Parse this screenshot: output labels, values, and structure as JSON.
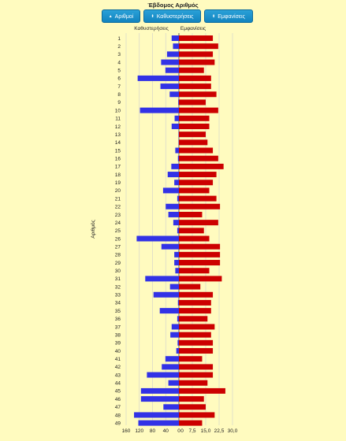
{
  "title": "Έβδομος Αριθμός",
  "buttons": [
    {
      "label": "Αριθμοί",
      "icon": "sort-up-icon"
    },
    {
      "label": "Καθυστερήσεις",
      "icon": "sort-both-icon"
    },
    {
      "label": "Εμφανίσεις",
      "icon": "sort-both-icon"
    }
  ],
  "colors": {
    "delays": "#3232e6",
    "appearances": "#cc0000",
    "background": "#fffbbf",
    "button": "#1a8fcc"
  },
  "chart_data": {
    "type": "bar",
    "orientation": "horizontal",
    "ylabel": "Αριθμός",
    "categories": [
      "1",
      "2",
      "3",
      "4",
      "5",
      "6",
      "7",
      "8",
      "9",
      "10",
      "11",
      "12",
      "13",
      "14",
      "15",
      "16",
      "17",
      "18",
      "19",
      "20",
      "21",
      "22",
      "23",
      "24",
      "25",
      "26",
      "27",
      "28",
      "29",
      "30",
      "31",
      "32",
      "33",
      "34",
      "35",
      "36",
      "37",
      "38",
      "39",
      "40",
      "41",
      "42",
      "43",
      "44",
      "45",
      "46",
      "47",
      "48",
      "49"
    ],
    "series": [
      {
        "name": "Καθυστερήσεις",
        "side": "left",
        "xticks": [
          160,
          120,
          80,
          40,
          0
        ],
        "xlim": [
          0,
          160
        ],
        "values": [
          22,
          18,
          36,
          54,
          41,
          125,
          56,
          28,
          2,
          118,
          13,
          22,
          1,
          1,
          11,
          3,
          23,
          34,
          14,
          48,
          5,
          40,
          32,
          17,
          5,
          128,
          53,
          14,
          14,
          11,
          102,
          27,
          77,
          3,
          58,
          5,
          22,
          26,
          4,
          8,
          41,
          52,
          97,
          32,
          115,
          115,
          47,
          136,
          123
        ]
      },
      {
        "name": "Εμφανίσεις",
        "side": "right",
        "xticks": [
          "0",
          "7,5",
          "15,0",
          "22,5",
          "30,0"
        ],
        "xlim": [
          0,
          30
        ],
        "values": [
          19,
          22,
          19,
          20,
          14,
          18,
          18,
          21,
          15,
          22,
          17,
          17,
          15,
          16,
          19,
          22,
          25,
          21,
          19,
          17,
          21,
          23,
          13,
          22,
          14,
          17,
          23,
          23,
          23,
          17,
          24,
          12,
          19,
          18,
          18,
          16,
          20,
          18,
          19,
          19,
          13,
          19,
          19,
          16,
          26,
          14,
          15,
          20,
          13
        ]
      }
    ]
  }
}
